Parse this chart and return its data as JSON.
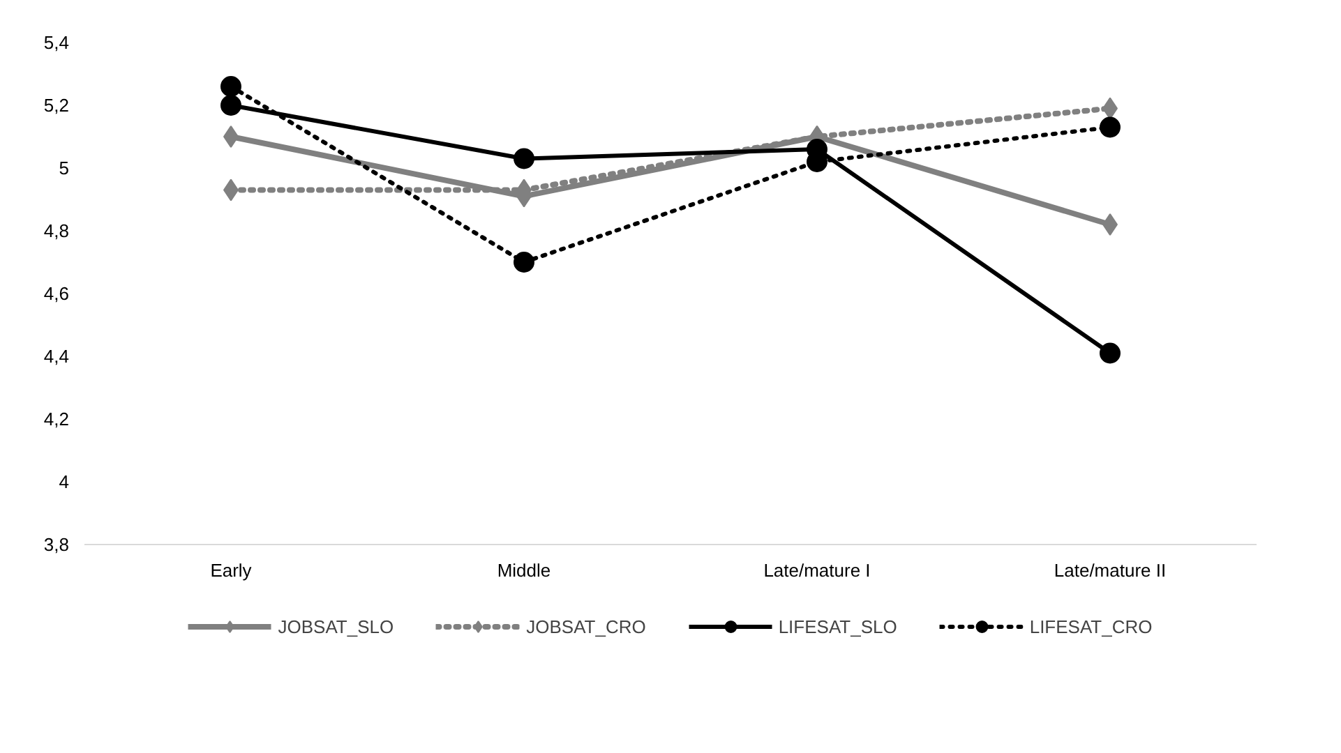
{
  "chart_data": {
    "type": "line",
    "categories": [
      "Early",
      "Middle",
      "Late/mature I",
      "Late/mature II"
    ],
    "series": [
      {
        "name": "JOBSAT_SLO",
        "color": "#808080",
        "values": [
          5.1,
          4.91,
          5.1,
          4.82
        ],
        "marker": "diamond",
        "line_style": "solid"
      },
      {
        "name": "JOBSAT_CRO",
        "color": "#808080",
        "values": [
          4.93,
          4.93,
          5.1,
          5.19
        ],
        "marker": "diamond",
        "line_style": "dotted"
      },
      {
        "name": "LIFESAT_SLO",
        "color": "#000000",
        "values": [
          5.2,
          5.03,
          5.06,
          4.41
        ],
        "marker": "circle",
        "line_style": "solid"
      },
      {
        "name": "LIFESAT_CRO",
        "color": "#000000",
        "values": [
          5.26,
          4.7,
          5.02,
          5.13
        ],
        "marker": "circle",
        "line_style": "dotted"
      }
    ],
    "ylim": [
      3.8,
      5.4
    ],
    "yticks": [
      {
        "value": 3.8,
        "label": "3,8"
      },
      {
        "value": 4,
        "label": "4"
      },
      {
        "value": 4.2,
        "label": "4,2"
      },
      {
        "value": 4.4,
        "label": "4,4"
      },
      {
        "value": 4.6,
        "label": "4,6"
      },
      {
        "value": 4.8,
        "label": "4,8"
      },
      {
        "value": 5,
        "label": "5"
      },
      {
        "value": 5.2,
        "label": "5,2"
      },
      {
        "value": 5.4,
        "label": "5,4"
      }
    ],
    "grid": false,
    "legend": "bottom"
  }
}
